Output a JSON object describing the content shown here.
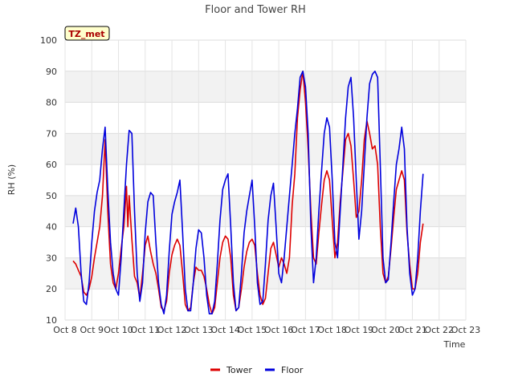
{
  "chart_data": {
    "type": "line",
    "title": "Floor and Tower RH",
    "xlabel": "Time",
    "ylabel": "RH (%)",
    "badge": "TZ_met",
    "ylim": [
      10,
      100
    ],
    "yticks": [
      "10",
      "20",
      "30",
      "40",
      "50",
      "60",
      "70",
      "80",
      "90",
      "100"
    ],
    "xlim": [
      8,
      23
    ],
    "xticks": [
      {
        "x": 8,
        "label": "Oct 8"
      },
      {
        "x": 9,
        "label": "Oct 9"
      },
      {
        "x": 10,
        "label": "Oct 10"
      },
      {
        "x": 11,
        "label": "Oct 11"
      },
      {
        "x": 12,
        "label": "Oct 12"
      },
      {
        "x": 13,
        "label": "Oct 13"
      },
      {
        "x": 14,
        "label": "Oct 14"
      },
      {
        "x": 15,
        "label": "Oct 15"
      },
      {
        "x": 16,
        "label": "Oct 16"
      },
      {
        "x": 17,
        "label": "Oct 17"
      },
      {
        "x": 18,
        "label": "Oct 18"
      },
      {
        "x": 19,
        "label": "Oct 19"
      },
      {
        "x": 20,
        "label": "Oct 20"
      },
      {
        "x": 21,
        "label": "Oct 21"
      },
      {
        "x": 22,
        "label": "Oct 22"
      },
      {
        "x": 23,
        "label": "Oct 23"
      }
    ],
    "grid": true,
    "legend_position": "bottom-center",
    "series": [
      {
        "name": "Tower",
        "color": "#dd0000",
        "points": [
          [
            8.3,
            29
          ],
          [
            8.4,
            28
          ],
          [
            8.5,
            26
          ],
          [
            8.6,
            24
          ],
          [
            8.7,
            19
          ],
          [
            8.8,
            18
          ],
          [
            8.9,
            20
          ],
          [
            9.0,
            24
          ],
          [
            9.1,
            30
          ],
          [
            9.2,
            35
          ],
          [
            9.3,
            40
          ],
          [
            9.4,
            50
          ],
          [
            9.5,
            68
          ],
          [
            9.6,
            45
          ],
          [
            9.7,
            28
          ],
          [
            9.8,
            22
          ],
          [
            9.9,
            20
          ],
          [
            10.0,
            25
          ],
          [
            10.1,
            33
          ],
          [
            10.2,
            40
          ],
          [
            10.3,
            53
          ],
          [
            10.35,
            40
          ],
          [
            10.4,
            50
          ],
          [
            10.5,
            36
          ],
          [
            10.6,
            24
          ],
          [
            10.7,
            22
          ],
          [
            10.8,
            17
          ],
          [
            10.9,
            25
          ],
          [
            11.0,
            34
          ],
          [
            11.1,
            37
          ],
          [
            11.2,
            32
          ],
          [
            11.3,
            28
          ],
          [
            11.4,
            25
          ],
          [
            11.5,
            20
          ],
          [
            11.6,
            14
          ],
          [
            11.7,
            13
          ],
          [
            11.8,
            16
          ],
          [
            11.9,
            25
          ],
          [
            12.0,
            31
          ],
          [
            12.1,
            34
          ],
          [
            12.2,
            36
          ],
          [
            12.3,
            34
          ],
          [
            12.4,
            25
          ],
          [
            12.5,
            15
          ],
          [
            12.6,
            13
          ],
          [
            12.7,
            14
          ],
          [
            12.8,
            22
          ],
          [
            12.9,
            27
          ],
          [
            13.0,
            26
          ],
          [
            13.1,
            26
          ],
          [
            13.2,
            24
          ],
          [
            13.3,
            20
          ],
          [
            13.4,
            15
          ],
          [
            13.5,
            12
          ],
          [
            13.6,
            14
          ],
          [
            13.7,
            22
          ],
          [
            13.8,
            30
          ],
          [
            13.9,
            35
          ],
          [
            14.0,
            37
          ],
          [
            14.1,
            36
          ],
          [
            14.2,
            30
          ],
          [
            14.3,
            18
          ],
          [
            14.4,
            13
          ],
          [
            14.5,
            14
          ],
          [
            14.6,
            20
          ],
          [
            14.7,
            27
          ],
          [
            14.8,
            32
          ],
          [
            14.9,
            35
          ],
          [
            15.0,
            36
          ],
          [
            15.1,
            34
          ],
          [
            15.2,
            25
          ],
          [
            15.3,
            18
          ],
          [
            15.4,
            15
          ],
          [
            15.5,
            17
          ],
          [
            15.6,
            25
          ],
          [
            15.7,
            33
          ],
          [
            15.8,
            35
          ],
          [
            15.9,
            31
          ],
          [
            16.0,
            27
          ],
          [
            16.1,
            30
          ],
          [
            16.2,
            28
          ],
          [
            16.3,
            25
          ],
          [
            16.4,
            30
          ],
          [
            16.5,
            47
          ],
          [
            16.6,
            57
          ],
          [
            16.7,
            75
          ],
          [
            16.8,
            84
          ],
          [
            16.9,
            90
          ],
          [
            17.0,
            80
          ],
          [
            17.1,
            65
          ],
          [
            17.2,
            45
          ],
          [
            17.3,
            30
          ],
          [
            17.4,
            28
          ],
          [
            17.5,
            38
          ],
          [
            17.6,
            47
          ],
          [
            17.7,
            55
          ],
          [
            17.8,
            58
          ],
          [
            17.9,
            55
          ],
          [
            18.0,
            42
          ],
          [
            18.1,
            30
          ],
          [
            18.2,
            35
          ],
          [
            18.3,
            48
          ],
          [
            18.4,
            58
          ],
          [
            18.5,
            68
          ],
          [
            18.6,
            70
          ],
          [
            18.7,
            66
          ],
          [
            18.8,
            55
          ],
          [
            18.9,
            43
          ],
          [
            19.0,
            45
          ],
          [
            19.1,
            55
          ],
          [
            19.2,
            68
          ],
          [
            19.3,
            74
          ],
          [
            19.4,
            70
          ],
          [
            19.5,
            65
          ],
          [
            19.6,
            66
          ],
          [
            19.7,
            60
          ],
          [
            19.8,
            40
          ],
          [
            19.9,
            25
          ],
          [
            20.0,
            22
          ],
          [
            20.1,
            24
          ],
          [
            20.2,
            33
          ],
          [
            20.3,
            43
          ],
          [
            20.4,
            52
          ],
          [
            20.5,
            55
          ],
          [
            20.6,
            58
          ],
          [
            20.7,
            55
          ],
          [
            20.8,
            38
          ],
          [
            20.9,
            28
          ],
          [
            21.0,
            20
          ],
          [
            21.1,
            20
          ],
          [
            21.2,
            25
          ],
          [
            21.3,
            35
          ],
          [
            21.4,
            41
          ]
        ]
      },
      {
        "name": "Floor",
        "color": "#0000dd",
        "points": [
          [
            8.3,
            41
          ],
          [
            8.4,
            46
          ],
          [
            8.5,
            40
          ],
          [
            8.6,
            25
          ],
          [
            8.7,
            16
          ],
          [
            8.8,
            15
          ],
          [
            8.9,
            22
          ],
          [
            9.0,
            35
          ],
          [
            9.1,
            45
          ],
          [
            9.2,
            51
          ],
          [
            9.3,
            55
          ],
          [
            9.4,
            65
          ],
          [
            9.5,
            72
          ],
          [
            9.6,
            52
          ],
          [
            9.7,
            35
          ],
          [
            9.8,
            25
          ],
          [
            9.9,
            20
          ],
          [
            10.0,
            18
          ],
          [
            10.1,
            30
          ],
          [
            10.2,
            45
          ],
          [
            10.3,
            60
          ],
          [
            10.4,
            71
          ],
          [
            10.5,
            70
          ],
          [
            10.6,
            45
          ],
          [
            10.7,
            25
          ],
          [
            10.8,
            16
          ],
          [
            10.9,
            22
          ],
          [
            11.0,
            38
          ],
          [
            11.1,
            48
          ],
          [
            11.2,
            51
          ],
          [
            11.3,
            50
          ],
          [
            11.4,
            35
          ],
          [
            11.5,
            22
          ],
          [
            11.6,
            15
          ],
          [
            11.7,
            12
          ],
          [
            11.8,
            18
          ],
          [
            11.9,
            32
          ],
          [
            12.0,
            44
          ],
          [
            12.1,
            48
          ],
          [
            12.2,
            51
          ],
          [
            12.3,
            55
          ],
          [
            12.4,
            38
          ],
          [
            12.5,
            20
          ],
          [
            12.6,
            13
          ],
          [
            12.7,
            13
          ],
          [
            12.8,
            22
          ],
          [
            12.9,
            33
          ],
          [
            13.0,
            39
          ],
          [
            13.1,
            38
          ],
          [
            13.2,
            30
          ],
          [
            13.3,
            18
          ],
          [
            13.4,
            12
          ],
          [
            13.5,
            12
          ],
          [
            13.6,
            16
          ],
          [
            13.7,
            28
          ],
          [
            13.8,
            42
          ],
          [
            13.9,
            52
          ],
          [
            14.0,
            55
          ],
          [
            14.1,
            57
          ],
          [
            14.2,
            40
          ],
          [
            14.3,
            22
          ],
          [
            14.4,
            13
          ],
          [
            14.5,
            14
          ],
          [
            14.6,
            25
          ],
          [
            14.7,
            38
          ],
          [
            14.8,
            45
          ],
          [
            14.9,
            50
          ],
          [
            15.0,
            55
          ],
          [
            15.1,
            40
          ],
          [
            15.2,
            22
          ],
          [
            15.3,
            15
          ],
          [
            15.4,
            16
          ],
          [
            15.5,
            28
          ],
          [
            15.6,
            42
          ],
          [
            15.7,
            50
          ],
          [
            15.8,
            54
          ],
          [
            15.9,
            40
          ],
          [
            16.0,
            25
          ],
          [
            16.1,
            22
          ],
          [
            16.2,
            30
          ],
          [
            16.3,
            40
          ],
          [
            16.4,
            50
          ],
          [
            16.5,
            60
          ],
          [
            16.6,
            70
          ],
          [
            16.7,
            78
          ],
          [
            16.8,
            88
          ],
          [
            16.9,
            90
          ],
          [
            17.0,
            85
          ],
          [
            17.1,
            70
          ],
          [
            17.2,
            40
          ],
          [
            17.3,
            22
          ],
          [
            17.4,
            30
          ],
          [
            17.5,
            45
          ],
          [
            17.6,
            58
          ],
          [
            17.7,
            70
          ],
          [
            17.8,
            75
          ],
          [
            17.9,
            72
          ],
          [
            18.0,
            55
          ],
          [
            18.1,
            35
          ],
          [
            18.2,
            30
          ],
          [
            18.3,
            45
          ],
          [
            18.4,
            60
          ],
          [
            18.5,
            75
          ],
          [
            18.6,
            85
          ],
          [
            18.7,
            88
          ],
          [
            18.8,
            75
          ],
          [
            18.9,
            55
          ],
          [
            19.0,
            36
          ],
          [
            19.1,
            45
          ],
          [
            19.2,
            60
          ],
          [
            19.3,
            75
          ],
          [
            19.4,
            86
          ],
          [
            19.5,
            89
          ],
          [
            19.6,
            90
          ],
          [
            19.7,
            88
          ],
          [
            19.8,
            60
          ],
          [
            19.9,
            30
          ],
          [
            20.0,
            22
          ],
          [
            20.1,
            23
          ],
          [
            20.2,
            35
          ],
          [
            20.3,
            48
          ],
          [
            20.4,
            60
          ],
          [
            20.5,
            65
          ],
          [
            20.6,
            72
          ],
          [
            20.7,
            65
          ],
          [
            20.8,
            40
          ],
          [
            20.9,
            25
          ],
          [
            21.0,
            18
          ],
          [
            21.1,
            20
          ],
          [
            21.2,
            30
          ],
          [
            21.3,
            45
          ],
          [
            21.4,
            57
          ]
        ]
      }
    ]
  }
}
